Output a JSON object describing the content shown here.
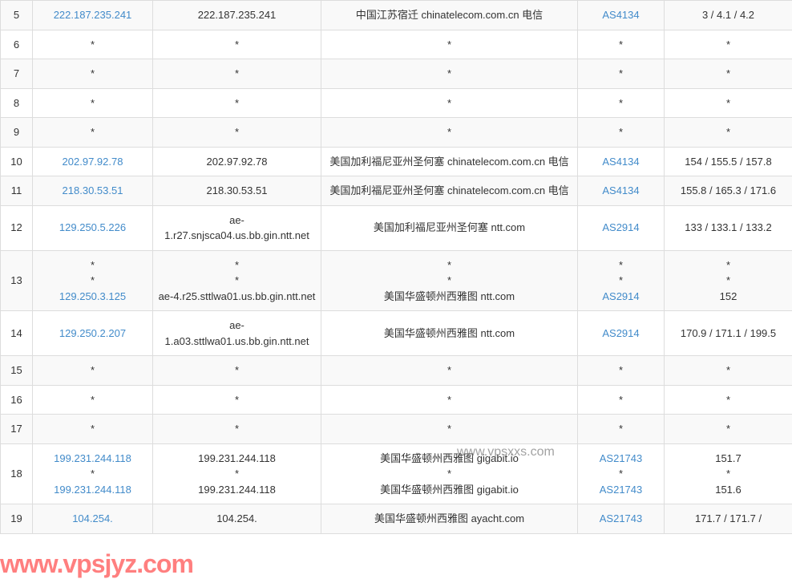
{
  "table": {
    "colors": {
      "link": "#428bca",
      "border": "#dddddd",
      "row_odd": "#f9f9f9",
      "row_even": "#ffffff",
      "text": "#333333"
    },
    "columns": [
      "hop",
      "ip",
      "host",
      "location",
      "asn",
      "latency"
    ],
    "rows": [
      {
        "hop": "5",
        "ip": [
          {
            "text": "222.187.235.241",
            "link": true
          }
        ],
        "host": [
          {
            "text": "222.187.235.241",
            "link": false
          }
        ],
        "loc": [
          {
            "text": "中国江苏宿迁 chinatelecom.com.cn 电信",
            "link": false
          }
        ],
        "asn": [
          {
            "text": "AS4134",
            "link": true
          }
        ],
        "lat": [
          {
            "text": "3 / 4.1 / 4.2",
            "link": false
          }
        ]
      },
      {
        "hop": "6",
        "ip": [
          {
            "text": "*",
            "link": false
          }
        ],
        "host": [
          {
            "text": "*",
            "link": false
          }
        ],
        "loc": [
          {
            "text": "*",
            "link": false
          }
        ],
        "asn": [
          {
            "text": "*",
            "link": false
          }
        ],
        "lat": [
          {
            "text": "*",
            "link": false
          }
        ]
      },
      {
        "hop": "7",
        "ip": [
          {
            "text": "*",
            "link": false
          }
        ],
        "host": [
          {
            "text": "*",
            "link": false
          }
        ],
        "loc": [
          {
            "text": "*",
            "link": false
          }
        ],
        "asn": [
          {
            "text": "*",
            "link": false
          }
        ],
        "lat": [
          {
            "text": "*",
            "link": false
          }
        ]
      },
      {
        "hop": "8",
        "ip": [
          {
            "text": "*",
            "link": false
          }
        ],
        "host": [
          {
            "text": "*",
            "link": false
          }
        ],
        "loc": [
          {
            "text": "*",
            "link": false
          }
        ],
        "asn": [
          {
            "text": "*",
            "link": false
          }
        ],
        "lat": [
          {
            "text": "*",
            "link": false
          }
        ]
      },
      {
        "hop": "9",
        "ip": [
          {
            "text": "*",
            "link": false
          }
        ],
        "host": [
          {
            "text": "*",
            "link": false
          }
        ],
        "loc": [
          {
            "text": "*",
            "link": false
          }
        ],
        "asn": [
          {
            "text": "*",
            "link": false
          }
        ],
        "lat": [
          {
            "text": "*",
            "link": false
          }
        ]
      },
      {
        "hop": "10",
        "ip": [
          {
            "text": "202.97.92.78",
            "link": true
          }
        ],
        "host": [
          {
            "text": "202.97.92.78",
            "link": false
          }
        ],
        "loc": [
          {
            "text": "美国加利福尼亚州圣何塞 chinatelecom.com.cn 电信",
            "link": false
          }
        ],
        "asn": [
          {
            "text": "AS4134",
            "link": true
          }
        ],
        "lat": [
          {
            "text": "154 / 155.5 / 157.8",
            "link": false
          }
        ]
      },
      {
        "hop": "11",
        "ip": [
          {
            "text": "218.30.53.51",
            "link": true
          }
        ],
        "host": [
          {
            "text": "218.30.53.51",
            "link": false
          }
        ],
        "loc": [
          {
            "text": "美国加利福尼亚州圣何塞 chinatelecom.com.cn 电信",
            "link": false
          }
        ],
        "asn": [
          {
            "text": "AS4134",
            "link": true
          }
        ],
        "lat": [
          {
            "text": "155.8 / 165.3 / 171.6",
            "link": false
          }
        ]
      },
      {
        "hop": "12",
        "ip": [
          {
            "text": "129.250.5.226",
            "link": true
          }
        ],
        "host": [
          {
            "text": "ae-1.r27.snjsca04.us.bb.gin.ntt.net",
            "link": false
          }
        ],
        "loc": [
          {
            "text": "美国加利福尼亚州圣何塞 ntt.com",
            "link": false
          }
        ],
        "asn": [
          {
            "text": "AS2914",
            "link": true
          }
        ],
        "lat": [
          {
            "text": "133 / 133.1 / 133.2",
            "link": false
          }
        ]
      },
      {
        "hop": "13",
        "ip": [
          {
            "text": "*",
            "link": false
          },
          {
            "text": "*",
            "link": false
          },
          {
            "text": "129.250.3.125",
            "link": true
          }
        ],
        "host": [
          {
            "text": "*",
            "link": false
          },
          {
            "text": "*",
            "link": false
          },
          {
            "text": "ae-4.r25.sttlwa01.us.bb.gin.ntt.net",
            "link": false
          }
        ],
        "loc": [
          {
            "text": "*",
            "link": false
          },
          {
            "text": "*",
            "link": false
          },
          {
            "text": "美国华盛顿州西雅图 ntt.com",
            "link": false
          }
        ],
        "asn": [
          {
            "text": "*",
            "link": false
          },
          {
            "text": "*",
            "link": false
          },
          {
            "text": "AS2914",
            "link": true
          }
        ],
        "lat": [
          {
            "text": "*",
            "link": false
          },
          {
            "text": "*",
            "link": false
          },
          {
            "text": "152",
            "link": false
          }
        ]
      },
      {
        "hop": "14",
        "ip": [
          {
            "text": "129.250.2.207",
            "link": true
          }
        ],
        "host": [
          {
            "text": "ae-1.a03.sttlwa01.us.bb.gin.ntt.net",
            "link": false
          }
        ],
        "loc": [
          {
            "text": "美国华盛顿州西雅图 ntt.com",
            "link": false
          }
        ],
        "asn": [
          {
            "text": "AS2914",
            "link": true
          }
        ],
        "lat": [
          {
            "text": "170.9 / 171.1 / 199.5",
            "link": false
          }
        ]
      },
      {
        "hop": "15",
        "ip": [
          {
            "text": "*",
            "link": false
          }
        ],
        "host": [
          {
            "text": "*",
            "link": false
          }
        ],
        "loc": [
          {
            "text": "*",
            "link": false
          }
        ],
        "asn": [
          {
            "text": "*",
            "link": false
          }
        ],
        "lat": [
          {
            "text": "*",
            "link": false
          }
        ]
      },
      {
        "hop": "16",
        "ip": [
          {
            "text": "*",
            "link": false
          }
        ],
        "host": [
          {
            "text": "*",
            "link": false
          }
        ],
        "loc": [
          {
            "text": "*",
            "link": false
          }
        ],
        "asn": [
          {
            "text": "*",
            "link": false
          }
        ],
        "lat": [
          {
            "text": "*",
            "link": false
          }
        ]
      },
      {
        "hop": "17",
        "ip": [
          {
            "text": "*",
            "link": false
          }
        ],
        "host": [
          {
            "text": "*",
            "link": false
          }
        ],
        "loc": [
          {
            "text": "*",
            "link": false
          }
        ],
        "asn": [
          {
            "text": "*",
            "link": false
          }
        ],
        "lat": [
          {
            "text": "*",
            "link": false
          }
        ]
      },
      {
        "hop": "18",
        "ip": [
          {
            "text": "199.231.244.118",
            "link": true
          },
          {
            "text": "*",
            "link": false
          },
          {
            "text": "199.231.244.118",
            "link": true
          }
        ],
        "host": [
          {
            "text": "199.231.244.118",
            "link": false
          },
          {
            "text": "*",
            "link": false
          },
          {
            "text": "199.231.244.118",
            "link": false
          }
        ],
        "loc": [
          {
            "text": "美国华盛顿州西雅图 gigabit.io",
            "link": false
          },
          {
            "text": "*",
            "link": false
          },
          {
            "text": "美国华盛顿州西雅图 gigabit.io",
            "link": false
          }
        ],
        "asn": [
          {
            "text": "AS21743",
            "link": true
          },
          {
            "text": "*",
            "link": false
          },
          {
            "text": "AS21743",
            "link": true
          }
        ],
        "lat": [
          {
            "text": "151.7",
            "link": false
          },
          {
            "text": "*",
            "link": false
          },
          {
            "text": "151.6",
            "link": false
          }
        ]
      },
      {
        "hop": "19",
        "ip": [
          {
            "text": "104.254.",
            "link": true
          }
        ],
        "host": [
          {
            "text": "104.254.",
            "link": false
          }
        ],
        "loc": [
          {
            "text": "美国华盛顿州西雅图 ayacht.com",
            "link": false
          }
        ],
        "asn": [
          {
            "text": "AS21743",
            "link": true
          }
        ],
        "lat": [
          {
            "text": "171.7 / 171.7 /",
            "link": false
          }
        ]
      }
    ]
  },
  "watermarks": {
    "wm1": "www.vpsjyz.com",
    "wm2": "www.vpsxxs.com"
  }
}
